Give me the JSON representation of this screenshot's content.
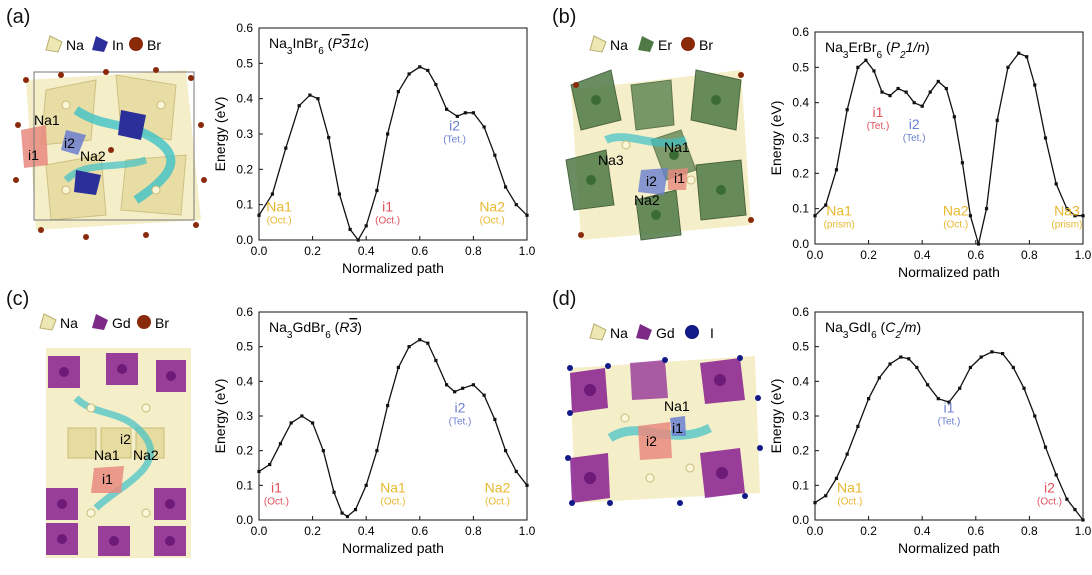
{
  "panels": [
    {
      "letter": "(a)",
      "legend": [
        {
          "label": "Na",
          "color": "#ece7b4",
          "shape": "tetra"
        },
        {
          "label": "In",
          "color": "#2b2f9a",
          "shape": "tetra"
        },
        {
          "label": "Br",
          "color": "#8a2a0a",
          "shape": "ball"
        }
      ],
      "structure_labels": [
        "Na1",
        "i1",
        "i2",
        "Na2"
      ],
      "colors": {
        "poly": "#ece3a8",
        "center": "#2b2f9a",
        "channel": "#3fc2c8"
      }
    },
    {
      "letter": "(b)",
      "legend": [
        {
          "label": "Na",
          "color": "#ece7b4",
          "shape": "tetra"
        },
        {
          "label": "Er",
          "color": "#4f7a45",
          "shape": "tetra"
        },
        {
          "label": "Br",
          "color": "#8a2a0a",
          "shape": "ball"
        }
      ],
      "structure_labels": [
        "Na3",
        "Na1",
        "i2",
        "i1",
        "Na2"
      ],
      "colors": {
        "poly": "#ece3a8",
        "center": "#4f7a45",
        "channel": "#3fc2c8"
      }
    },
    {
      "letter": "(c)",
      "legend": [
        {
          "label": "Na",
          "color": "#ece7b4",
          "shape": "tetra"
        },
        {
          "label": "Gd",
          "color": "#7d2a86",
          "shape": "tetra"
        },
        {
          "label": "Br",
          "color": "#8a2a0a",
          "shape": "ball"
        }
      ],
      "structure_labels": [
        "i2",
        "Na1",
        "Na2",
        "i1"
      ],
      "colors": {
        "poly": "#ece3a8",
        "center": "#8e2a94",
        "channel": "#3fc2c8"
      }
    },
    {
      "letter": "(d)",
      "legend": [
        {
          "label": "Na",
          "color": "#ece7b4",
          "shape": "tetra"
        },
        {
          "label": "Gd",
          "color": "#7d2a86",
          "shape": "tetra"
        },
        {
          "label": "I",
          "color": "#121a8a",
          "shape": "ball"
        }
      ],
      "structure_labels": [
        "Na1",
        "i2",
        "i1"
      ],
      "colors": {
        "poly": "#ece3a8",
        "center": "#8e2a94",
        "channel": "#3fc2c8"
      }
    }
  ],
  "colors": {
    "gold": "#e8b830",
    "red": "#e0505a",
    "blue": "#6b7fd0",
    "line": "#111111"
  },
  "chart_data": [
    {
      "type": "line",
      "title": "Na3InBr6 (P-31c)",
      "xlabel": "Normalized path",
      "ylabel": "Energy (eV)",
      "xlim": [
        0,
        1
      ],
      "ylim": [
        0,
        0.6
      ],
      "xticks": [
        "0.0",
        "0.2",
        "0.4",
        "0.6",
        "0.8",
        "1.0"
      ],
      "yticks": [
        "0.0",
        "0.1",
        "0.2",
        "0.3",
        "0.4",
        "0.5",
        "0.6"
      ],
      "series": [
        {
          "x": [
            0,
            0.05,
            0.1,
            0.15,
            0.19,
            0.22,
            0.26,
            0.3,
            0.34,
            0.37,
            0.4,
            0.44,
            0.48,
            0.52,
            0.56,
            0.6,
            0.63,
            0.66,
            0.7,
            0.74,
            0.77,
            0.8,
            0.84,
            0.88,
            0.92,
            0.96,
            1.0
          ],
          "y": [
            0.07,
            0.13,
            0.26,
            0.38,
            0.41,
            0.4,
            0.29,
            0.13,
            0.03,
            0.0,
            0.04,
            0.14,
            0.3,
            0.42,
            0.47,
            0.49,
            0.48,
            0.44,
            0.37,
            0.35,
            0.36,
            0.36,
            0.32,
            0.24,
            0.15,
            0.1,
            0.07
          ]
        }
      ],
      "annotations": [
        {
          "text": "Na1",
          "sub": "(Oct.)",
          "x": 0.075,
          "y": 0.08,
          "color": "gold"
        },
        {
          "text": "i1",
          "sub": "(Oct.)",
          "x": 0.48,
          "y": 0.08,
          "color": "red"
        },
        {
          "text": "Na2",
          "sub": "(Oct.)",
          "x": 0.87,
          "y": 0.08,
          "color": "gold"
        },
        {
          "text": "i2",
          "sub": "(Tet.)",
          "x": 0.73,
          "y": 0.31,
          "color": "blue"
        }
      ]
    },
    {
      "type": "line",
      "title": "Na3ErBr6 (P21/n)",
      "xlabel": "Normalized path",
      "ylabel": "Energy (eV)",
      "xlim": [
        0,
        1
      ],
      "ylim": [
        0,
        0.6
      ],
      "xticks": [
        "0.0",
        "0.2",
        "0.4",
        "0.6",
        "0.8",
        "1.0"
      ],
      "yticks": [
        "0.0",
        "0.1",
        "0.2",
        "0.3",
        "0.4",
        "0.5",
        "0.6"
      ],
      "series": [
        {
          "x": [
            0,
            0.04,
            0.08,
            0.12,
            0.16,
            0.19,
            0.22,
            0.25,
            0.28,
            0.31,
            0.34,
            0.37,
            0.4,
            0.43,
            0.46,
            0.49,
            0.52,
            0.55,
            0.58,
            0.61,
            0.64,
            0.68,
            0.72,
            0.76,
            0.79,
            0.82,
            0.86,
            0.9,
            0.94,
            0.97,
            1.0
          ],
          "y": [
            0.08,
            0.11,
            0.21,
            0.38,
            0.5,
            0.52,
            0.49,
            0.43,
            0.42,
            0.44,
            0.43,
            0.4,
            0.39,
            0.43,
            0.46,
            0.44,
            0.36,
            0.23,
            0.08,
            0.0,
            0.1,
            0.35,
            0.5,
            0.54,
            0.53,
            0.45,
            0.3,
            0.17,
            0.1,
            0.08,
            0.08
          ]
        }
      ],
      "annotations": [
        {
          "text": "Na1",
          "sub": "(prism)",
          "x": 0.09,
          "y": 0.08,
          "color": "gold"
        },
        {
          "text": "i1",
          "sub": "(Tet.)",
          "x": 0.235,
          "y": 0.36,
          "color": "red"
        },
        {
          "text": "i2",
          "sub": "(Tet.)",
          "x": 0.37,
          "y": 0.325,
          "color": "blue"
        },
        {
          "text": "Na2",
          "sub": "(Oct.)",
          "x": 0.525,
          "y": 0.08,
          "color": "gold"
        },
        {
          "text": "Na3",
          "sub": "(prism)",
          "x": 0.94,
          "y": 0.08,
          "color": "gold"
        }
      ]
    },
    {
      "type": "line",
      "title": "Na3GdBr6 (R-3)",
      "xlabel": "Normalized path",
      "ylabel": "Energy (eV)",
      "xlim": [
        0,
        1
      ],
      "ylim": [
        0,
        0.6
      ],
      "xticks": [
        "0.0",
        "0.2",
        "0.4",
        "0.6",
        "0.8",
        "1.0"
      ],
      "yticks": [
        "0.0",
        "0.1",
        "0.2",
        "0.3",
        "0.4",
        "0.5",
        "0.6"
      ],
      "series": [
        {
          "x": [
            0,
            0.04,
            0.08,
            0.12,
            0.16,
            0.2,
            0.24,
            0.28,
            0.31,
            0.33,
            0.36,
            0.4,
            0.44,
            0.48,
            0.52,
            0.56,
            0.6,
            0.63,
            0.66,
            0.7,
            0.73,
            0.76,
            0.8,
            0.84,
            0.88,
            0.92,
            0.96,
            1.0
          ],
          "y": [
            0.14,
            0.16,
            0.22,
            0.28,
            0.3,
            0.28,
            0.2,
            0.08,
            0.02,
            0.01,
            0.03,
            0.1,
            0.2,
            0.33,
            0.44,
            0.5,
            0.52,
            0.51,
            0.46,
            0.39,
            0.37,
            0.38,
            0.39,
            0.36,
            0.29,
            0.2,
            0.14,
            0.1
          ]
        }
      ],
      "annotations": [
        {
          "text": "i1",
          "sub": "(Oct.)",
          "x": 0.065,
          "y": 0.08,
          "color": "red"
        },
        {
          "text": "Na1",
          "sub": "(Oct.)",
          "x": 0.5,
          "y": 0.08,
          "color": "gold"
        },
        {
          "text": "Na2",
          "sub": "(Oct.)",
          "x": 0.89,
          "y": 0.08,
          "color": "gold"
        },
        {
          "text": "i2",
          "sub": "(Tet.)",
          "x": 0.75,
          "y": 0.31,
          "color": "blue"
        }
      ]
    },
    {
      "type": "line",
      "title": "Na3GdI6 (C2/m)",
      "xlabel": "Normalized path",
      "ylabel": "Energy (eV)",
      "xlim": [
        0,
        1
      ],
      "ylim": [
        0,
        0.6
      ],
      "xticks": [
        "0.0",
        "0.2",
        "0.4",
        "0.6",
        "0.8",
        "1.0"
      ],
      "yticks": [
        "0.0",
        "0.1",
        "0.2",
        "0.3",
        "0.4",
        "0.5",
        "0.6"
      ],
      "series": [
        {
          "x": [
            0,
            0.04,
            0.08,
            0.12,
            0.16,
            0.2,
            0.24,
            0.28,
            0.32,
            0.35,
            0.38,
            0.42,
            0.46,
            0.5,
            0.54,
            0.58,
            0.62,
            0.66,
            0.7,
            0.74,
            0.78,
            0.82,
            0.86,
            0.9,
            0.94,
            0.97,
            1.0
          ],
          "y": [
            0.05,
            0.07,
            0.12,
            0.19,
            0.27,
            0.35,
            0.41,
            0.45,
            0.47,
            0.465,
            0.44,
            0.39,
            0.35,
            0.34,
            0.38,
            0.44,
            0.47,
            0.485,
            0.48,
            0.44,
            0.38,
            0.3,
            0.21,
            0.13,
            0.06,
            0.03,
            0.0
          ]
        }
      ],
      "annotations": [
        {
          "text": "Na1",
          "sub": "(Oct.)",
          "x": 0.13,
          "y": 0.08,
          "color": "gold"
        },
        {
          "text": "i1",
          "sub": "(Tet.)",
          "x": 0.5,
          "y": 0.31,
          "color": "blue"
        },
        {
          "text": "i2",
          "sub": "(Oct.)",
          "x": 0.875,
          "y": 0.08,
          "color": "red"
        }
      ]
    }
  ]
}
